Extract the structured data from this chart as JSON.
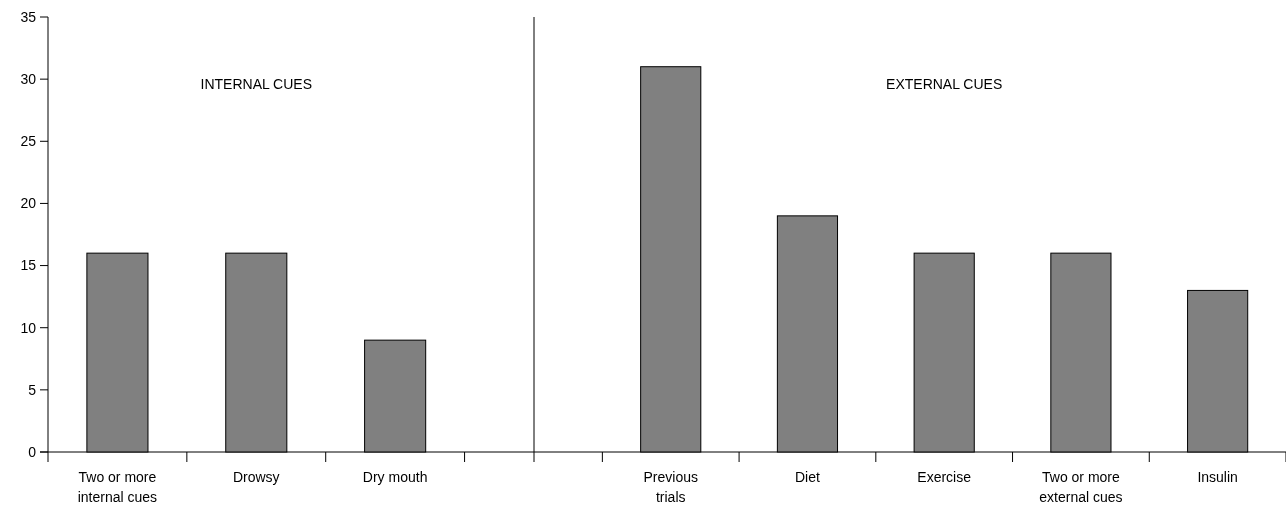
{
  "chart_data": [
    {
      "type": "bar",
      "categories": [
        "Two or more internal cues",
        "Drowsy",
        "Dry mouth"
      ],
      "values": [
        16,
        16,
        9
      ],
      "color": "#808080",
      "ylim": [
        0,
        35
      ],
      "yticks": [
        0,
        5,
        10,
        15,
        20,
        25,
        30,
        35
      ],
      "annotations": [
        "INTERNAL CUES"
      ]
    },
    {
      "type": "bar",
      "categories": [
        "Previous trials",
        "Diet",
        "Exercise",
        "Two or more external cues",
        "Insulin"
      ],
      "values": [
        31,
        19,
        16,
        16,
        13
      ],
      "color": "#808080",
      "ylim": [
        0,
        35
      ],
      "yticks": [
        0,
        5,
        10,
        15,
        20,
        25,
        30,
        35
      ],
      "tick_labels": "x",
      "annotations": [
        "EXTERNAL CUES"
      ]
    }
  ]
}
